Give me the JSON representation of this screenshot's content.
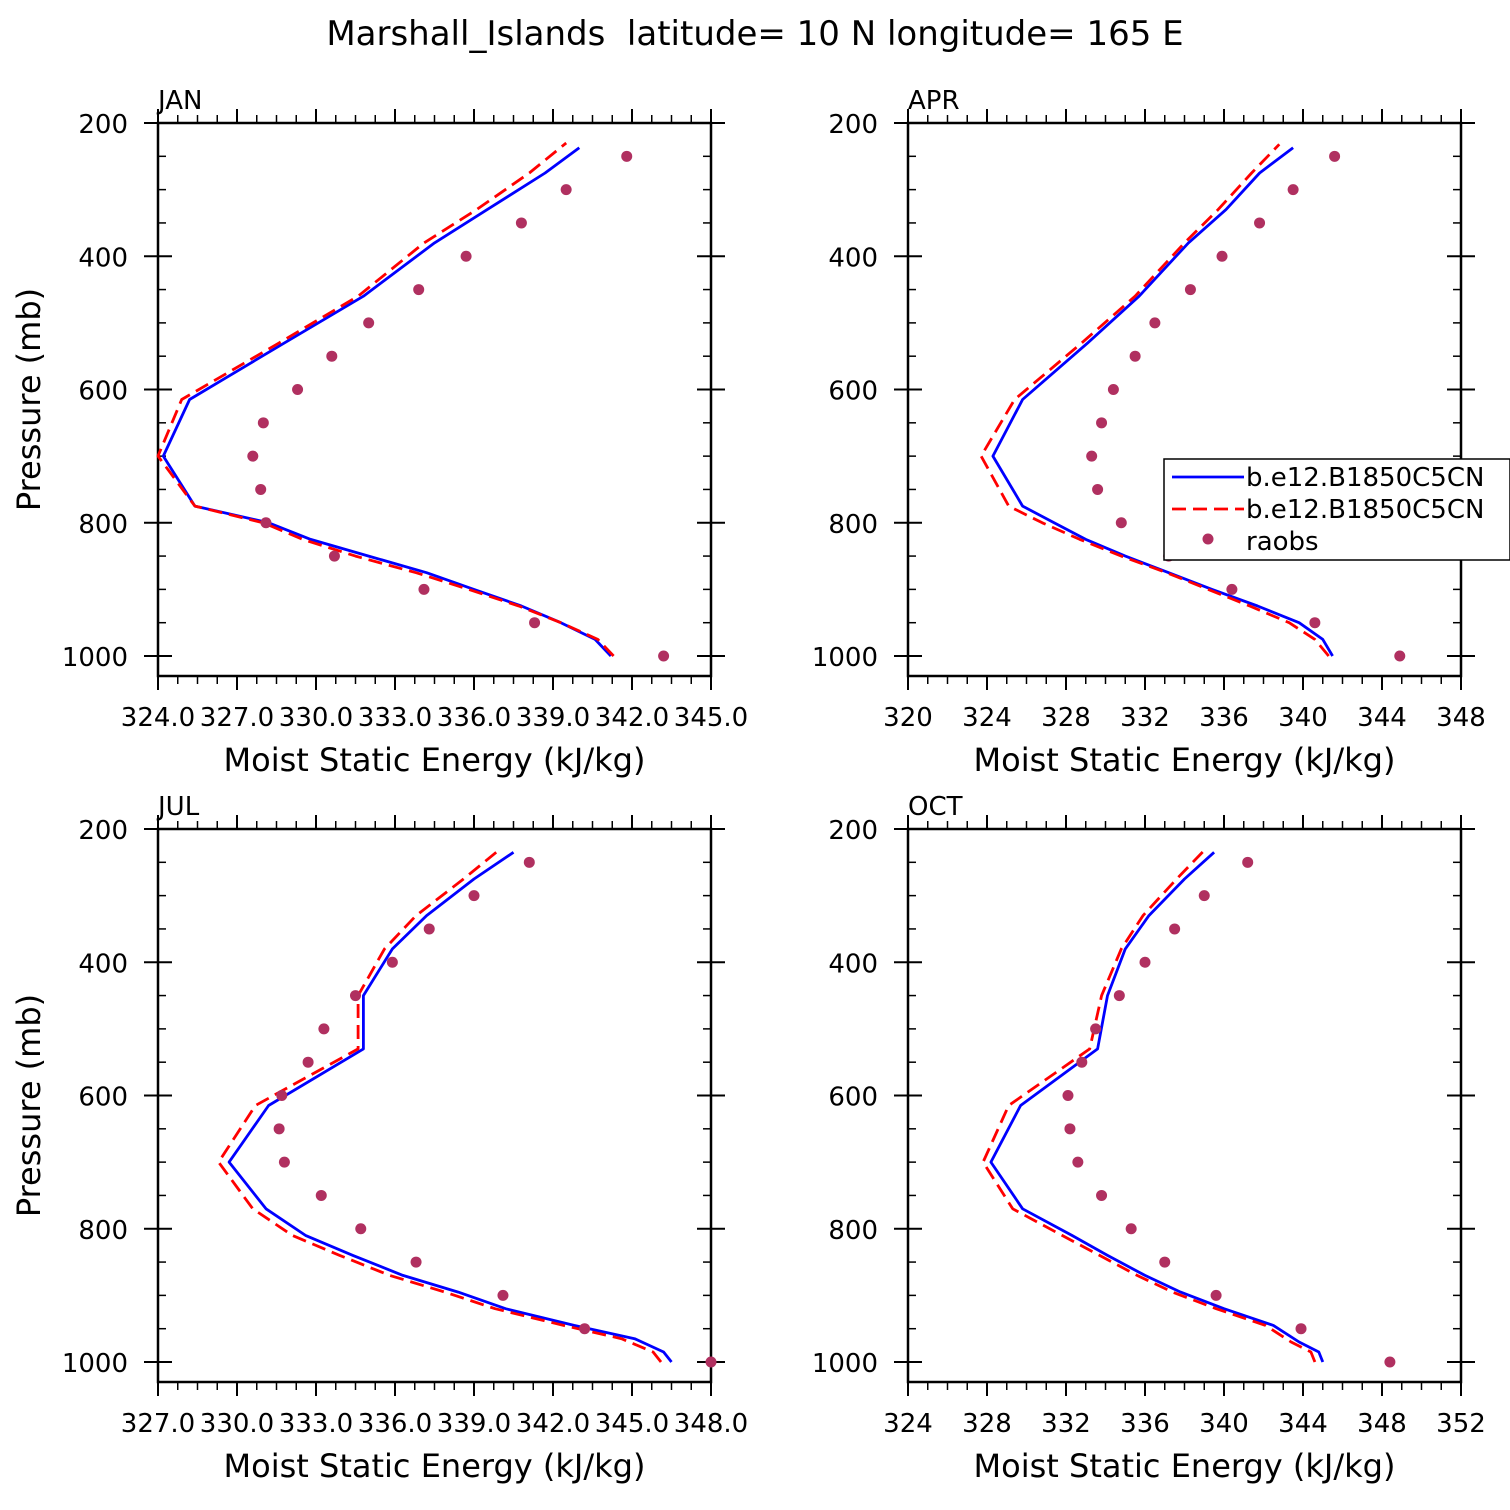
{
  "figure_title": "Marshall_Islands  latitude= 10 N longitude= 165 E",
  "colors": {
    "series_a": "#0000ff",
    "series_b": "#ff0000",
    "raobs": "#b03060"
  },
  "legend": {
    "entries": [
      "b.e12.B1850C5CN",
      "b.e12.B1850C5CN",
      "raobs"
    ]
  },
  "chart_data": [
    {
      "type": "line",
      "panel_label": "JAN",
      "xlabel": "Moist Static Energy (kJ/kg)",
      "ylabel": "Pressure (mb)",
      "xlim": [
        324,
        345
      ],
      "ylim": [
        1000,
        200
      ],
      "x_ticks": [
        324,
        327,
        330,
        333,
        336,
        339,
        342,
        345
      ],
      "x_tick_labels": [
        "324.0",
        "327.0",
        "330.0",
        "333.0",
        "336.0",
        "339.0",
        "342.0",
        "345.0"
      ],
      "y_ticks": [
        200,
        400,
        600,
        800,
        1000
      ],
      "y_tick_labels": [
        "200",
        "400",
        "600",
        "800",
        "1000"
      ],
      "series": [
        {
          "name": "b.e12.B1850C5CN",
          "style": "solid",
          "p": [
            1000,
            975,
            950,
            925,
            900,
            875,
            850,
            825,
            800,
            775,
            700,
            615,
            530,
            460,
            380,
            330,
            275,
            237
          ],
          "values": [
            341.2,
            340.6,
            339.3,
            337.8,
            336.0,
            334.2,
            332.0,
            329.8,
            328.2,
            325.4,
            324.2,
            325.2,
            328.8,
            331.8,
            334.5,
            336.5,
            338.7,
            340.0
          ]
        },
        {
          "name": "b.e12.B1850C5CN",
          "style": "dashed",
          "p": [
            1000,
            975,
            950,
            925,
            900,
            875,
            850,
            825,
            800,
            775,
            700,
            615,
            530,
            460,
            380,
            330,
            275,
            230
          ],
          "values": [
            341.3,
            340.7,
            339.3,
            337.7,
            335.8,
            333.8,
            331.5,
            329.5,
            328.0,
            325.4,
            324.0,
            324.9,
            328.6,
            331.6,
            334.1,
            336.1,
            338.1,
            339.5
          ]
        },
        {
          "name": "raobs",
          "style": "dots",
          "p": [
            1000,
            950,
            900,
            850,
            800,
            750,
            700,
            650,
            600,
            550,
            500,
            450,
            400,
            350,
            300,
            250
          ],
          "values": [
            343.2,
            338.3,
            334.1,
            330.7,
            328.1,
            327.9,
            327.6,
            328.0,
            329.3,
            330.6,
            332.0,
            333.9,
            335.7,
            337.8,
            339.5,
            341.8
          ]
        }
      ]
    },
    {
      "type": "line",
      "panel_label": "APR",
      "xlabel": "Moist Static Energy (kJ/kg)",
      "ylabel": "",
      "xlim": [
        320,
        348
      ],
      "ylim": [
        1000,
        200
      ],
      "x_ticks": [
        320,
        324,
        328,
        332,
        336,
        340,
        344,
        348
      ],
      "x_tick_labels": [
        "320",
        "324",
        "328",
        "332",
        "336",
        "340",
        "344",
        "348"
      ],
      "y_ticks": [
        200,
        400,
        600,
        800,
        1000
      ],
      "y_tick_labels": [
        "200",
        "400",
        "600",
        "800",
        "1000"
      ],
      "series": [
        {
          "name": "b.e12.B1850C5CN",
          "style": "solid",
          "p": [
            1000,
            975,
            950,
            925,
            900,
            875,
            850,
            825,
            800,
            775,
            700,
            615,
            530,
            460,
            380,
            330,
            275,
            237
          ],
          "values": [
            341.5,
            341.0,
            339.8,
            337.7,
            335.4,
            333.2,
            331.0,
            329.0,
            327.4,
            325.8,
            324.3,
            325.8,
            329.1,
            331.7,
            334.2,
            336.1,
            337.8,
            339.5
          ]
        },
        {
          "name": "b.e12.B1850C5CN",
          "style": "dashed",
          "p": [
            1000,
            975,
            950,
            925,
            900,
            875,
            850,
            825,
            800,
            775,
            700,
            615,
            530,
            460,
            380,
            330,
            275,
            232
          ],
          "values": [
            341.3,
            340.6,
            339.3,
            337.3,
            335.2,
            333.1,
            330.8,
            328.7,
            326.8,
            325.1,
            323.7,
            325.4,
            328.8,
            331.5,
            334.0,
            335.7,
            337.4,
            338.8
          ]
        },
        {
          "name": "raobs",
          "style": "dots",
          "p": [
            1000,
            950,
            900,
            850,
            800,
            750,
            700,
            650,
            600,
            550,
            500,
            450,
            400,
            350,
            300,
            250
          ],
          "values": [
            344.9,
            340.6,
            336.4,
            333.2,
            330.8,
            329.6,
            329.3,
            329.8,
            330.4,
            331.5,
            332.5,
            334.3,
            335.9,
            337.8,
            339.5,
            341.6
          ]
        }
      ]
    },
    {
      "type": "line",
      "panel_label": "JUL",
      "xlabel": "Moist Static Energy (kJ/kg)",
      "ylabel": "Pressure (mb)",
      "xlim": [
        327,
        348
      ],
      "ylim": [
        1000,
        200
      ],
      "x_ticks": [
        327,
        330,
        333,
        336,
        339,
        342,
        345,
        348
      ],
      "x_tick_labels": [
        "327.0",
        "330.0",
        "333.0",
        "336.0",
        "339.0",
        "342.0",
        "345.0",
        "348.0"
      ],
      "y_ticks": [
        200,
        400,
        600,
        800,
        1000
      ],
      "y_tick_labels": [
        "200",
        "400",
        "600",
        "800",
        "1000"
      ],
      "series": [
        {
          "name": "b.e12.B1850C5CN",
          "style": "solid",
          "p": [
            1000,
            985,
            965,
            945,
            920,
            895,
            870,
            840,
            810,
            770,
            700,
            615,
            530,
            450,
            380,
            330,
            275,
            235
          ],
          "values": [
            346.5,
            346.2,
            345.1,
            342.8,
            340.2,
            338.4,
            336.3,
            334.4,
            332.6,
            331.1,
            329.7,
            331.2,
            334.8,
            334.8,
            335.9,
            337.2,
            339.0,
            340.5
          ]
        },
        {
          "name": "b.e12.B1850C5CN",
          "style": "dashed",
          "p": [
            1000,
            985,
            965,
            945,
            920,
            895,
            870,
            840,
            810,
            770,
            700,
            615,
            530,
            450,
            380,
            330,
            275,
            230
          ],
          "values": [
            346.1,
            345.8,
            344.6,
            342.4,
            339.8,
            337.9,
            335.8,
            333.9,
            332.1,
            330.6,
            329.3,
            330.7,
            334.6,
            334.6,
            335.6,
            336.8,
            338.6,
            340.0
          ]
        },
        {
          "name": "raobs",
          "style": "dots",
          "p": [
            1000,
            950,
            900,
            850,
            800,
            750,
            700,
            650,
            600,
            550,
            500,
            450,
            400,
            350,
            300,
            250
          ],
          "values": [
            348.0,
            343.2,
            340.1,
            336.8,
            334.7,
            333.2,
            331.8,
            331.6,
            331.7,
            332.7,
            333.3,
            334.5,
            335.9,
            337.3,
            339.0,
            341.1
          ]
        }
      ]
    },
    {
      "type": "line",
      "panel_label": "OCT",
      "xlabel": "Moist Static Energy (kJ/kg)",
      "ylabel": "",
      "xlim": [
        324,
        352
      ],
      "ylim": [
        1000,
        200
      ],
      "x_ticks": [
        324,
        328,
        332,
        336,
        340,
        344,
        348,
        352
      ],
      "x_tick_labels": [
        "324",
        "328",
        "332",
        "336",
        "340",
        "344",
        "348",
        "352"
      ],
      "y_ticks": [
        200,
        400,
        600,
        800,
        1000
      ],
      "y_tick_labels": [
        "200",
        "400",
        "600",
        "800",
        "1000"
      ],
      "series": [
        {
          "name": "b.e12.B1850C5CN",
          "style": "solid",
          "p": [
            1000,
            985,
            970,
            945,
            920,
            895,
            870,
            840,
            810,
            770,
            700,
            615,
            530,
            450,
            380,
            330,
            275,
            235
          ],
          "values": [
            345.0,
            344.8,
            343.8,
            342.5,
            340.0,
            337.8,
            336.0,
            334.1,
            332.3,
            329.8,
            328.2,
            329.7,
            333.6,
            334.1,
            335.0,
            336.2,
            338.0,
            339.5
          ]
        },
        {
          "name": "b.e12.B1850C5CN",
          "style": "dashed",
          "p": [
            1000,
            985,
            970,
            945,
            920,
            895,
            870,
            840,
            810,
            770,
            700,
            615,
            530,
            450,
            380,
            330,
            275,
            232
          ],
          "values": [
            344.6,
            344.4,
            343.4,
            342.1,
            339.6,
            337.4,
            335.6,
            333.7,
            331.8,
            329.3,
            327.8,
            329.1,
            333.2,
            333.8,
            334.8,
            335.9,
            337.6,
            339.0
          ]
        },
        {
          "name": "raobs",
          "style": "dots",
          "p": [
            1000,
            950,
            900,
            850,
            800,
            750,
            700,
            650,
            600,
            550,
            500,
            450,
            400,
            350,
            300,
            250
          ],
          "values": [
            348.4,
            343.9,
            339.6,
            337.0,
            335.3,
            333.8,
            332.6,
            332.2,
            332.1,
            332.8,
            333.5,
            334.7,
            336.0,
            337.5,
            339.0,
            341.2
          ]
        }
      ]
    }
  ]
}
